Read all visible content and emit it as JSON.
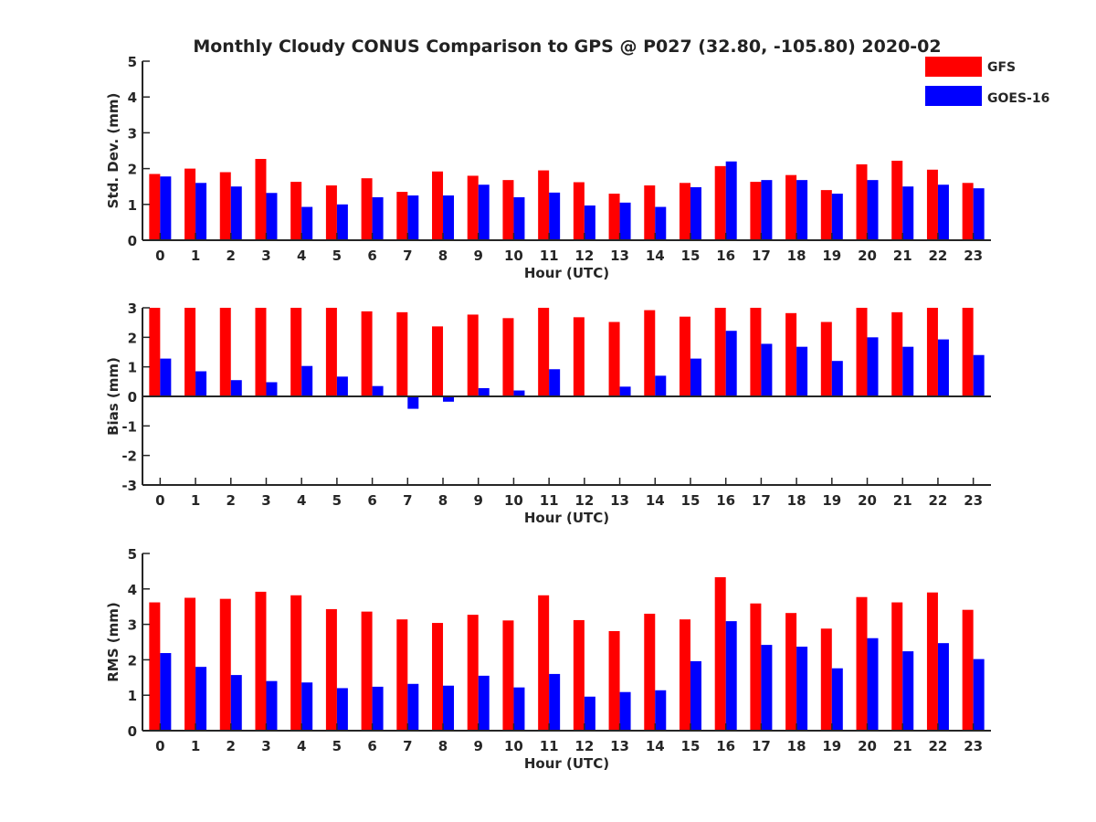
{
  "figure": {
    "title": "Monthly Cloudy CONUS Comparison to GPS @ P027 (32.80, -105.80) 2020-02"
  },
  "legend": {
    "placement": "top-right",
    "entries": [
      {
        "name": "GFS",
        "color": "#ff0000"
      },
      {
        "name": "GOES-16",
        "color": "#0000ff"
      }
    ]
  },
  "colors": {
    "gfs": "#ff0000",
    "goes": "#0000ff",
    "axis": "#262626"
  },
  "chart_data": [
    {
      "type": "bar",
      "title": "Monthly Cloudy CONUS Comparison to GPS @ P027 (32.80, -105.80) 2020-02",
      "xlabel": "Hour (UTC)",
      "ylabel": "Std. Dev. (mm)",
      "ylim": [
        0,
        5
      ],
      "yticks": [
        0,
        1,
        2,
        3,
        4,
        5
      ],
      "categories": [
        "0",
        "1",
        "2",
        "3",
        "4",
        "5",
        "6",
        "7",
        "8",
        "9",
        "10",
        "11",
        "12",
        "13",
        "14",
        "15",
        "16",
        "17",
        "18",
        "19",
        "20",
        "21",
        "22",
        "23"
      ],
      "grid": false,
      "series": [
        {
          "name": "GFS",
          "values": [
            1.85,
            2.0,
            1.9,
            2.27,
            1.63,
            1.53,
            1.73,
            1.35,
            1.92,
            1.8,
            1.68,
            1.95,
            1.62,
            1.3,
            1.53,
            1.6,
            2.07,
            1.63,
            1.82,
            1.4,
            2.12,
            2.22,
            1.97,
            1.6
          ]
        },
        {
          "name": "GOES-16",
          "values": [
            1.78,
            1.6,
            1.5,
            1.32,
            0.93,
            1.0,
            1.2,
            1.25,
            1.25,
            1.55,
            1.2,
            1.33,
            0.97,
            1.05,
            0.93,
            1.48,
            2.2,
            1.68,
            1.68,
            1.3,
            1.68,
            1.5,
            1.55,
            1.45
          ]
        }
      ]
    },
    {
      "type": "bar",
      "xlabel": "Hour (UTC)",
      "ylabel": "Bias (mm)",
      "ylim": [
        -3,
        3
      ],
      "yticks": [
        -3,
        -2,
        -1,
        0,
        1,
        2,
        3
      ],
      "categories": [
        "0",
        "1",
        "2",
        "3",
        "4",
        "5",
        "6",
        "7",
        "8",
        "9",
        "10",
        "11",
        "12",
        "13",
        "14",
        "15",
        "16",
        "17",
        "18",
        "19",
        "20",
        "21",
        "22",
        "23"
      ],
      "grid": false,
      "series": [
        {
          "name": "GFS",
          "values": [
            3.0,
            3.0,
            3.0,
            3.0,
            3.0,
            3.0,
            2.88,
            2.85,
            2.37,
            2.77,
            2.65,
            3.0,
            2.68,
            2.52,
            2.92,
            2.7,
            3.0,
            3.0,
            2.82,
            2.52,
            3.0,
            2.85,
            3.0,
            3.0
          ]
        },
        {
          "name": "GOES-16",
          "values": [
            1.28,
            0.85,
            0.55,
            0.48,
            1.03,
            0.67,
            0.35,
            -0.42,
            -0.18,
            0.28,
            0.2,
            0.92,
            0.03,
            0.33,
            0.7,
            1.28,
            2.22,
            1.78,
            1.68,
            1.2,
            2.0,
            1.68,
            1.93,
            1.4
          ]
        }
      ]
    },
    {
      "type": "bar",
      "xlabel": "Hour (UTC)",
      "ylabel": "RMS (mm)",
      "ylim": [
        0,
        5
      ],
      "yticks": [
        0,
        1,
        2,
        3,
        4,
        5
      ],
      "categories": [
        "0",
        "1",
        "2",
        "3",
        "4",
        "5",
        "6",
        "7",
        "8",
        "9",
        "10",
        "11",
        "12",
        "13",
        "14",
        "15",
        "16",
        "17",
        "18",
        "19",
        "20",
        "21",
        "22",
        "23"
      ],
      "grid": false,
      "series": [
        {
          "name": "GFS",
          "values": [
            3.62,
            3.75,
            3.72,
            3.92,
            3.82,
            3.43,
            3.36,
            3.14,
            3.04,
            3.27,
            3.11,
            3.82,
            3.12,
            2.81,
            3.3,
            3.14,
            4.33,
            3.59,
            3.32,
            2.88,
            3.77,
            3.62,
            3.9,
            3.41
          ]
        },
        {
          "name": "GOES-16",
          "values": [
            2.19,
            1.8,
            1.57,
            1.4,
            1.36,
            1.2,
            1.24,
            1.32,
            1.27,
            1.55,
            1.22,
            1.6,
            0.96,
            1.09,
            1.14,
            1.96,
            3.09,
            2.42,
            2.37,
            1.76,
            2.61,
            2.24,
            2.47,
            2.02
          ]
        }
      ]
    }
  ]
}
